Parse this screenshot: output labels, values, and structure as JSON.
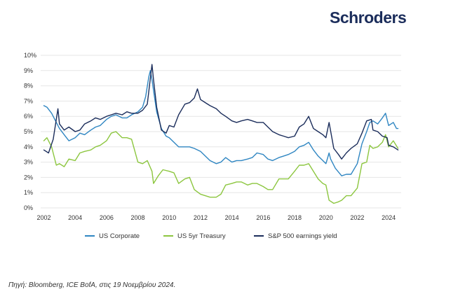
{
  "logo": {
    "text": "Schroders"
  },
  "source_note": "Πηγή: Bloomberg, ICE BofA, στις 19 Νοεμβρίου 2024.",
  "chart_data": {
    "type": "line",
    "title": "",
    "xlabel": "",
    "ylabel": "",
    "xlim": [
      2001.8,
      2024.8
    ],
    "ylim": [
      0,
      10
    ],
    "grid": "horizontal",
    "legend_position": "bottom",
    "y_ticks": [
      "0%",
      "1%",
      "2%",
      "3%",
      "4%",
      "5%",
      "6%",
      "7%",
      "8%",
      "9%",
      "10%"
    ],
    "x_ticks": [
      "2002",
      "2004",
      "2006",
      "2008",
      "2010",
      "2012",
      "2014",
      "2016",
      "2018",
      "2020",
      "2022",
      "2024"
    ],
    "series": [
      {
        "name": "US Corporate",
        "color": "#2f86c2",
        "x": [
          2002.0,
          2002.2,
          2002.5,
          2002.8,
          2003.0,
          2003.3,
          2003.6,
          2004.0,
          2004.3,
          2004.6,
          2005.0,
          2005.3,
          2005.6,
          2006.0,
          2006.3,
          2006.6,
          2007.0,
          2007.3,
          2007.6,
          2008.0,
          2008.3,
          2008.5,
          2008.7,
          2008.8,
          2008.9,
          2009.0,
          2009.2,
          2009.5,
          2009.8,
          2010.0,
          2010.3,
          2010.6,
          2011.0,
          2011.3,
          2011.6,
          2012.0,
          2012.3,
          2012.6,
          2013.0,
          2013.3,
          2013.6,
          2014.0,
          2014.3,
          2014.6,
          2015.0,
          2015.3,
          2015.6,
          2016.0,
          2016.3,
          2016.6,
          2017.0,
          2017.3,
          2017.6,
          2018.0,
          2018.3,
          2018.6,
          2018.9,
          2019.2,
          2019.5,
          2019.8,
          2020.0,
          2020.2,
          2020.3,
          2020.6,
          2021.0,
          2021.3,
          2021.6,
          2022.0,
          2022.3,
          2022.6,
          2022.8,
          2023.0,
          2023.3,
          2023.6,
          2023.8,
          2024.0,
          2024.3,
          2024.5,
          2024.6
        ],
        "values": [
          6.7,
          6.6,
          6.2,
          5.6,
          5.2,
          4.8,
          4.4,
          4.6,
          4.9,
          4.8,
          5.1,
          5.3,
          5.4,
          5.8,
          6.0,
          6.1,
          5.9,
          5.9,
          6.1,
          6.3,
          6.6,
          7.3,
          8.6,
          9.0,
          8.4,
          7.7,
          6.3,
          5.2,
          4.7,
          4.6,
          4.3,
          4.0,
          4.0,
          4.0,
          3.9,
          3.7,
          3.4,
          3.1,
          2.9,
          3.0,
          3.3,
          3.0,
          3.1,
          3.1,
          3.2,
          3.3,
          3.6,
          3.5,
          3.2,
          3.1,
          3.3,
          3.4,
          3.5,
          3.7,
          4.0,
          4.1,
          4.3,
          3.8,
          3.4,
          3.1,
          2.9,
          3.6,
          3.2,
          2.6,
          2.1,
          2.2,
          2.2,
          2.9,
          4.2,
          5.0,
          5.6,
          5.7,
          5.5,
          5.9,
          6.2,
          5.4,
          5.6,
          5.2,
          5.2
        ]
      },
      {
        "name": "US 5yr Treasury",
        "color": "#8cc63f",
        "x": [
          2002.0,
          2002.2,
          2002.5,
          2002.8,
          2003.0,
          2003.3,
          2003.6,
          2004.0,
          2004.3,
          2004.6,
          2005.0,
          2005.3,
          2005.6,
          2006.0,
          2006.3,
          2006.6,
          2007.0,
          2007.3,
          2007.6,
          2008.0,
          2008.3,
          2008.6,
          2008.9,
          2009.0,
          2009.3,
          2009.6,
          2010.0,
          2010.3,
          2010.6,
          2011.0,
          2011.3,
          2011.6,
          2012.0,
          2012.3,
          2012.6,
          2013.0,
          2013.3,
          2013.6,
          2014.0,
          2014.3,
          2014.6,
          2015.0,
          2015.3,
          2015.6,
          2016.0,
          2016.3,
          2016.6,
          2017.0,
          2017.3,
          2017.6,
          2018.0,
          2018.3,
          2018.6,
          2018.9,
          2019.2,
          2019.5,
          2019.8,
          2020.0,
          2020.2,
          2020.5,
          2020.8,
          2021.0,
          2021.3,
          2021.6,
          2022.0,
          2022.3,
          2022.6,
          2022.8,
          2023.0,
          2023.3,
          2023.6,
          2023.8,
          2024.0,
          2024.3,
          2024.6
        ],
        "values": [
          4.4,
          4.6,
          4.0,
          2.8,
          2.9,
          2.7,
          3.2,
          3.1,
          3.6,
          3.7,
          3.8,
          4.0,
          4.1,
          4.4,
          4.9,
          5.0,
          4.6,
          4.6,
          4.5,
          3.0,
          2.9,
          3.1,
          2.4,
          1.6,
          2.1,
          2.5,
          2.4,
          2.3,
          1.6,
          1.9,
          2.0,
          1.2,
          0.9,
          0.8,
          0.7,
          0.7,
          0.9,
          1.5,
          1.6,
          1.7,
          1.7,
          1.5,
          1.6,
          1.6,
          1.4,
          1.2,
          1.2,
          1.9,
          1.9,
          1.9,
          2.4,
          2.8,
          2.8,
          2.9,
          2.4,
          1.9,
          1.6,
          1.5,
          0.5,
          0.3,
          0.4,
          0.5,
          0.8,
          0.8,
          1.3,
          2.9,
          3.0,
          4.1,
          3.9,
          4.0,
          4.3,
          4.8,
          4.0,
          4.4,
          3.9
        ]
      },
      {
        "name": "S&P 500 earnings yield",
        "color": "#1b2d5b",
        "x": [
          2002.0,
          2002.3,
          2002.6,
          2002.9,
          2003.0,
          2003.3,
          2003.6,
          2004.0,
          2004.3,
          2004.6,
          2005.0,
          2005.3,
          2005.6,
          2006.0,
          2006.3,
          2006.6,
          2007.0,
          2007.3,
          2007.6,
          2008.0,
          2008.3,
          2008.6,
          2008.8,
          2008.9,
          2009.0,
          2009.2,
          2009.5,
          2009.8,
          2010.0,
          2010.3,
          2010.6,
          2011.0,
          2011.3,
          2011.6,
          2011.8,
          2012.0,
          2012.3,
          2012.6,
          2013.0,
          2013.3,
          2013.6,
          2014.0,
          2014.3,
          2014.6,
          2015.0,
          2015.3,
          2015.6,
          2016.0,
          2016.3,
          2016.6,
          2017.0,
          2017.3,
          2017.6,
          2018.0,
          2018.3,
          2018.6,
          2018.9,
          2019.2,
          2019.5,
          2019.8,
          2020.0,
          2020.2,
          2020.5,
          2020.8,
          2021.0,
          2021.3,
          2021.6,
          2022.0,
          2022.3,
          2022.6,
          2022.9,
          2023.0,
          2023.3,
          2023.6,
          2023.9,
          2024.0,
          2024.3,
          2024.6
        ],
        "values": [
          3.8,
          3.6,
          4.5,
          6.5,
          5.5,
          5.1,
          5.3,
          5.0,
          5.1,
          5.5,
          5.7,
          5.9,
          5.8,
          6.0,
          6.1,
          6.2,
          6.1,
          6.3,
          6.2,
          6.2,
          6.4,
          6.8,
          8.5,
          9.4,
          8.4,
          6.6,
          5.1,
          4.9,
          5.4,
          5.3,
          6.1,
          6.8,
          6.9,
          7.2,
          7.8,
          7.1,
          6.9,
          6.7,
          6.5,
          6.2,
          6.0,
          5.7,
          5.6,
          5.7,
          5.8,
          5.7,
          5.6,
          5.6,
          5.3,
          5.0,
          4.8,
          4.7,
          4.6,
          4.7,
          5.3,
          5.5,
          6.0,
          5.2,
          5.0,
          4.8,
          4.6,
          5.6,
          3.9,
          3.5,
          3.2,
          3.6,
          3.9,
          4.2,
          4.9,
          5.7,
          5.8,
          5.1,
          5.0,
          4.7,
          4.6,
          4.1,
          4.0,
          3.8
        ]
      }
    ]
  }
}
